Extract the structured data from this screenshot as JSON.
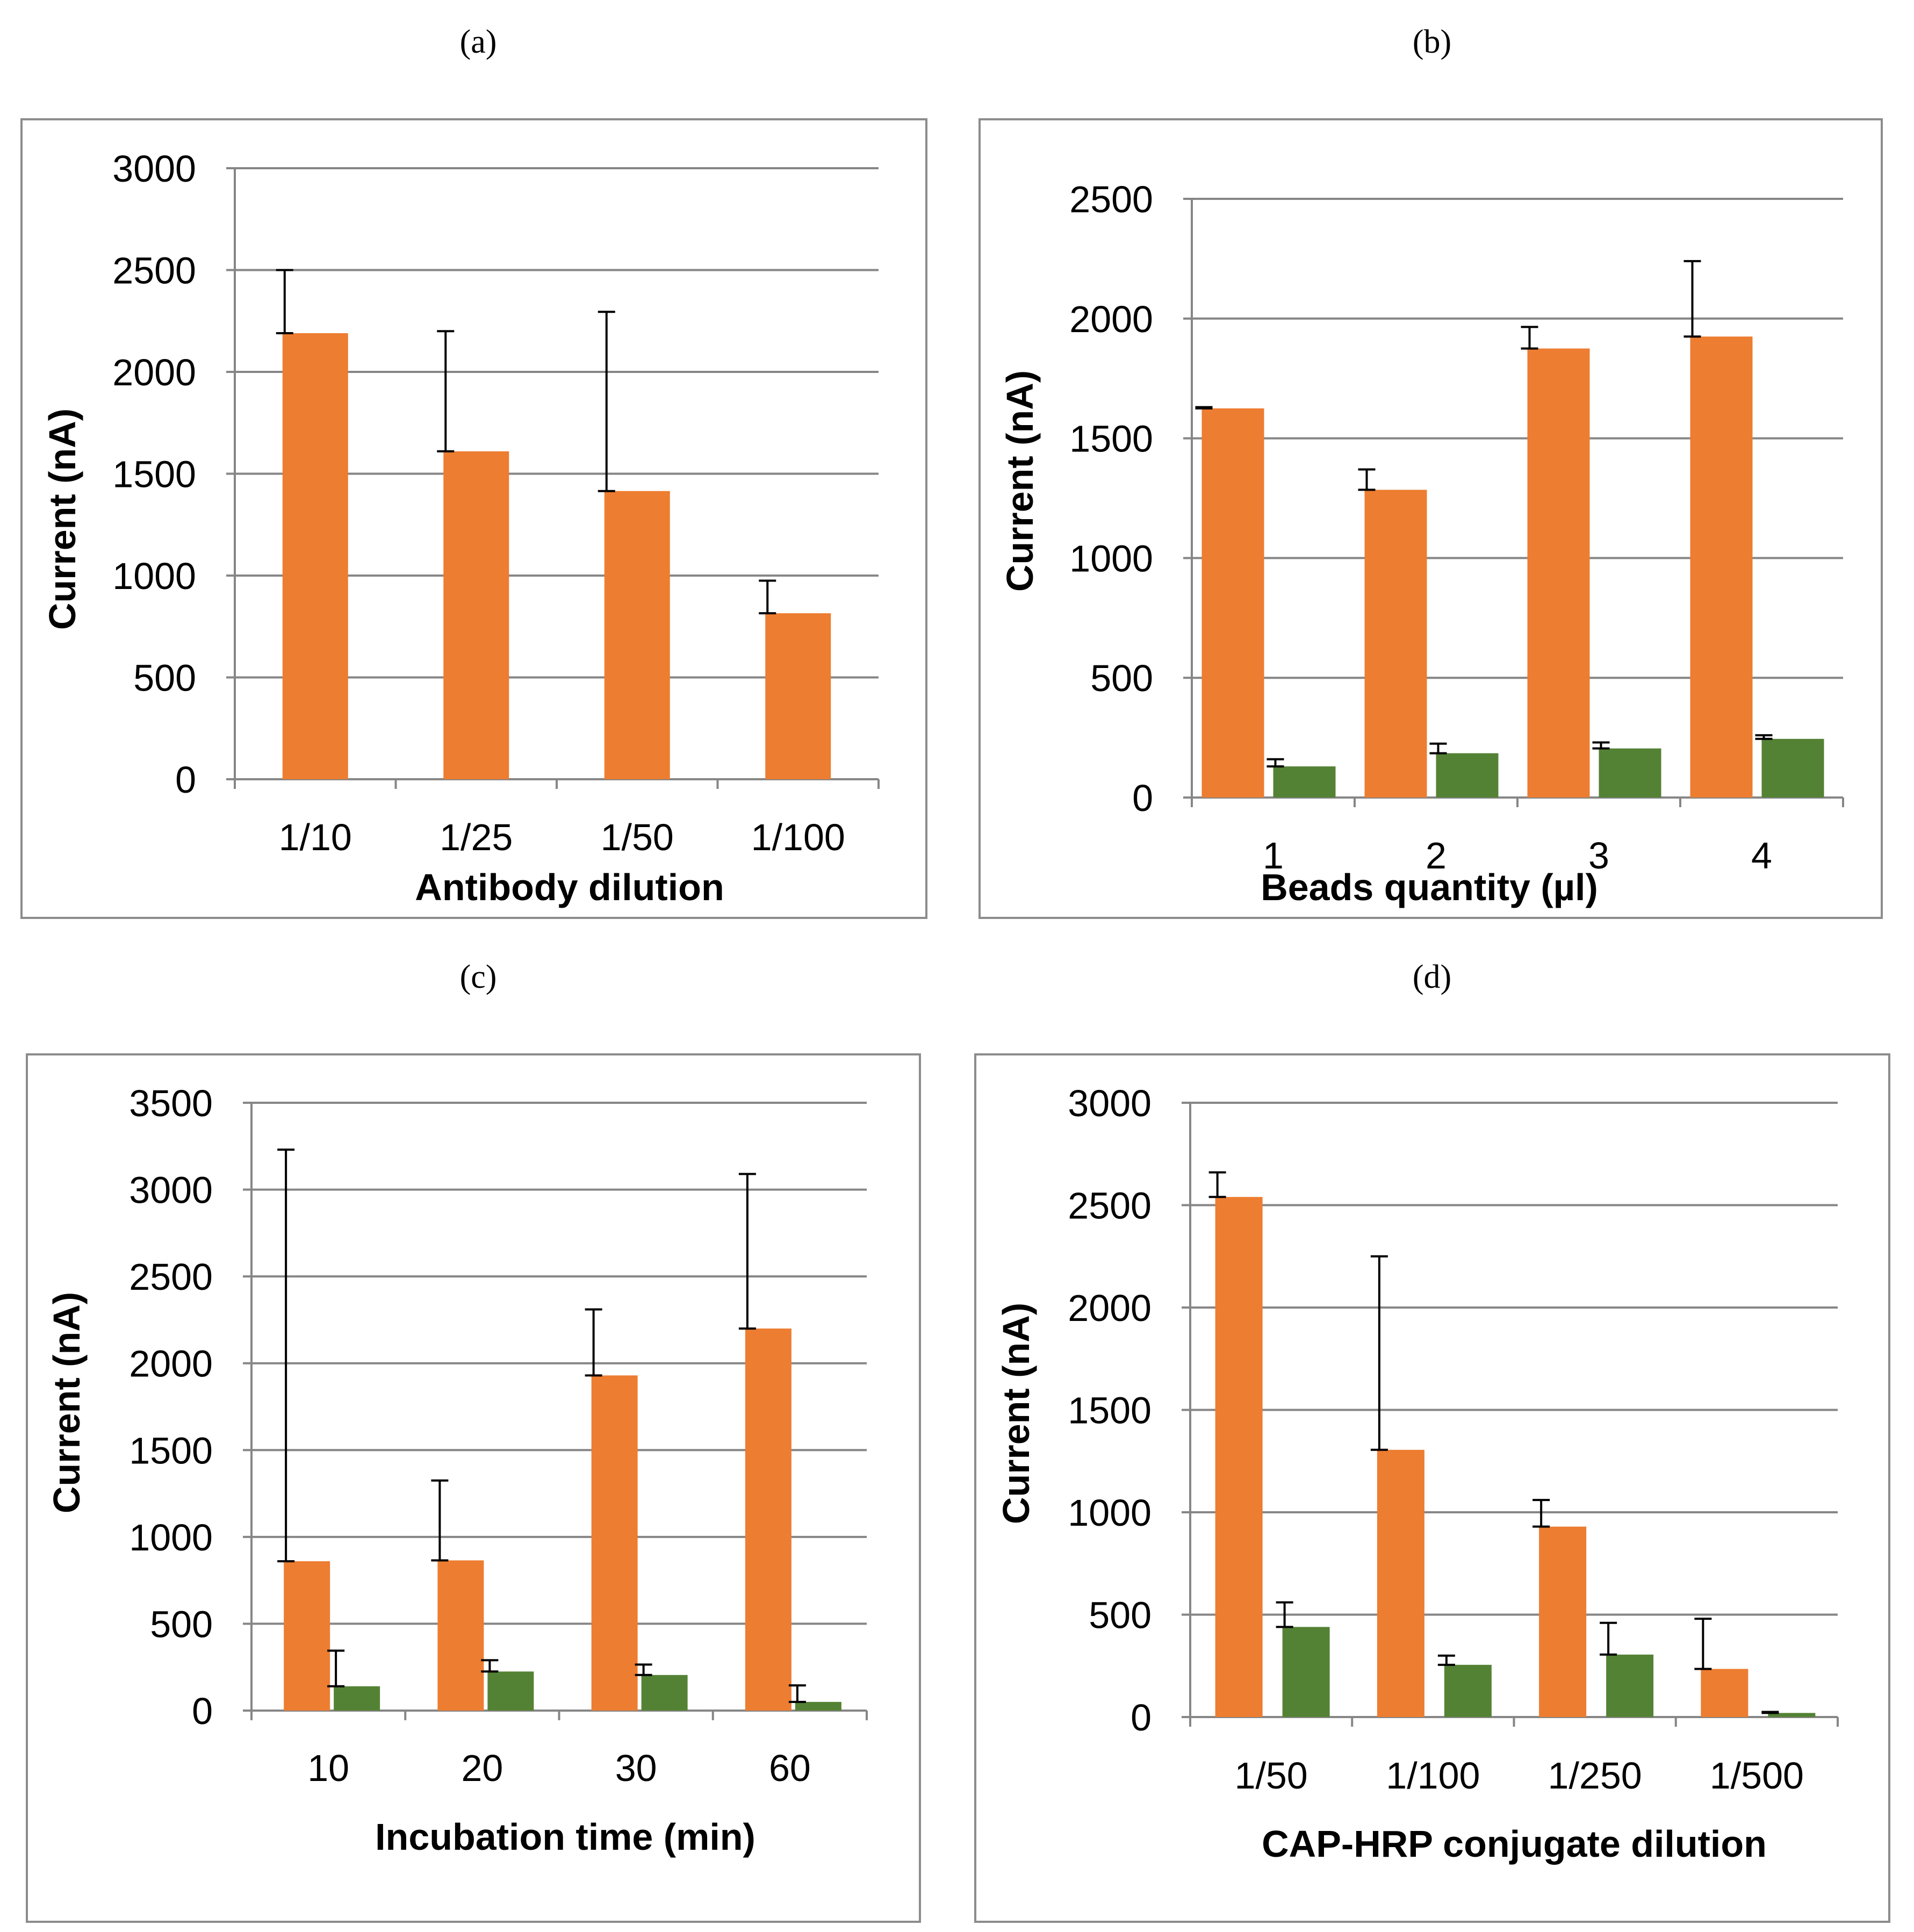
{
  "figure": {
    "colors": {
      "orange": "#ED7D31",
      "green": "#548235"
    }
  },
  "chart_data": [
    {
      "panel_label": "(a)",
      "type": "bar",
      "title": "",
      "xlabel": "Antibody dilution",
      "ylabel": "Current  (nA)",
      "ylim": [
        0,
        3000
      ],
      "yticks": [
        0,
        500,
        1000,
        1500,
        2000,
        2500,
        3000
      ],
      "categories": [
        "1/10",
        "1/25",
        "1/50",
        "1/100"
      ],
      "series": [
        {
          "name": "orange",
          "color": "#ED7D31",
          "values": [
            2190,
            1610,
            1415,
            815
          ],
          "errors": [
            310,
            590,
            880,
            160
          ]
        }
      ]
    },
    {
      "panel_label": "(b)",
      "type": "bar",
      "title": "",
      "xlabel": "Beads quantity (µl)",
      "ylabel": "Current (nA)",
      "ylim": [
        0,
        2500
      ],
      "yticks": [
        0,
        500,
        1000,
        1500,
        2000,
        2500
      ],
      "categories": [
        "1",
        "2",
        "3",
        "4"
      ],
      "series": [
        {
          "name": "orange",
          "color": "#ED7D31",
          "values": [
            1625,
            1285,
            1875,
            1925
          ],
          "errors": [
            5,
            85,
            90,
            315
          ]
        },
        {
          "name": "green",
          "color": "#548235",
          "values": [
            130,
            185,
            205,
            245
          ],
          "errors": [
            30,
            40,
            25,
            15
          ]
        }
      ]
    },
    {
      "panel_label": "(c)",
      "type": "bar",
      "title": "",
      "xlabel": "Incubation time (min)",
      "ylabel": "Current (nA)",
      "ylim": [
        0,
        3500
      ],
      "yticks": [
        0,
        500,
        1000,
        1500,
        2000,
        2500,
        3000,
        3500
      ],
      "categories": [
        "10",
        "20",
        "30",
        "60"
      ],
      "series": [
        {
          "name": "orange",
          "color": "#ED7D31",
          "values": [
            860,
            865,
            1930,
            2200
          ],
          "errors": [
            2370,
            460,
            380,
            890
          ]
        },
        {
          "name": "green",
          "color": "#548235",
          "values": [
            140,
            225,
            205,
            50
          ],
          "errors": [
            205,
            65,
            60,
            95
          ]
        }
      ]
    },
    {
      "panel_label": "(d)",
      "type": "bar",
      "title": "",
      "xlabel": "CAP-HRP conjugate dilution",
      "ylabel": "Current (nA)",
      "ylim": [
        0,
        3000
      ],
      "yticks": [
        0,
        500,
        1000,
        1500,
        2000,
        2500,
        3000
      ],
      "categories": [
        "1/50",
        "1/100",
        "1/250",
        "1/500"
      ],
      "series": [
        {
          "name": "orange",
          "color": "#ED7D31",
          "values": [
            2540,
            1305,
            930,
            235
          ],
          "errors": [
            120,
            945,
            130,
            245
          ]
        },
        {
          "name": "green",
          "color": "#548235",
          "values": [
            440,
            255,
            305,
            20
          ],
          "errors": [
            120,
            45,
            155,
            5
          ]
        }
      ]
    }
  ]
}
